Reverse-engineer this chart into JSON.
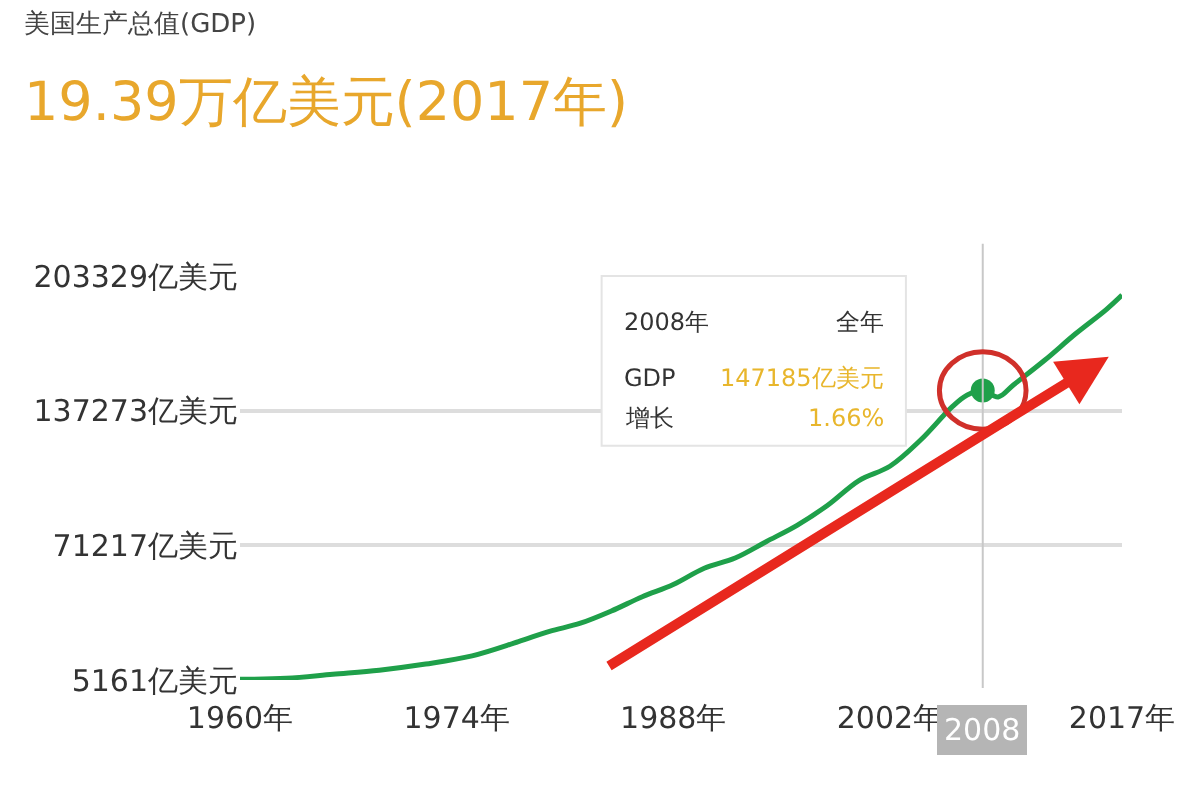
{
  "chart_data": {
    "type": "line",
    "title": "美国生产总值(GDP)",
    "subtitle": "19.39万亿美元(2017年)",
    "annotations": [
      "2008年",
      "全年",
      "GDP",
      "147185亿美元",
      "增长",
      "1.66%"
    ],
    "series": [
      {
        "color": "#1fa04a",
        "marker": "none",
        "x": [
          1960,
          1963,
          1966,
          1969,
          1972,
          1975,
          1978,
          1980,
          1982,
          1984,
          1986,
          1988,
          1990,
          1992,
          1994,
          1996,
          1998,
          2000,
          2002,
          2004,
          2006,
          2007,
          2008,
          2009,
          2010,
          2012,
          2014,
          2016,
          2017
        ],
        "values": [
          5500,
          6000,
          8000,
          10000,
          13000,
          17000,
          24000,
          29000,
          33000,
          39000,
          46000,
          52000,
          60000,
          65000,
          73000,
          81000,
          91000,
          103000,
          110000,
          123000,
          139000,
          145000,
          147000,
          144000,
          150000,
          162000,
          175000,
          187000,
          194000
        ]
      },
      {
        "type": "scatter",
        "color": "#1fa04a",
        "marker": "circle",
        "x": [
          2008
        ],
        "values": [
          147185
        ]
      }
    ],
    "xlim": [
      1960,
      2017
    ],
    "xticks": [
      {
        "value": 1960,
        "label": "1960年"
      },
      {
        "value": 1974,
        "label": "1974年"
      },
      {
        "value": 1988,
        "label": "1988年"
      },
      {
        "value": 2002,
        "label": "2002年"
      },
      {
        "value": 2017,
        "label": "2017年"
      }
    ],
    "ylim": [
      5161,
      203329
    ],
    "yticks": [
      {
        "value": 5161,
        "label": "5161亿美元"
      },
      {
        "value": 71217,
        "label": "71217亿美元"
      },
      {
        "value": 137273,
        "label": "137273亿美元"
      },
      {
        "value": 203329,
        "label": "203329亿美元"
      }
    ],
    "grid": "y",
    "ref_lines": [
      {
        "axis": "x",
        "value": 2008,
        "label": "2008",
        "color": "#c8c8c8"
      }
    ]
  }
}
